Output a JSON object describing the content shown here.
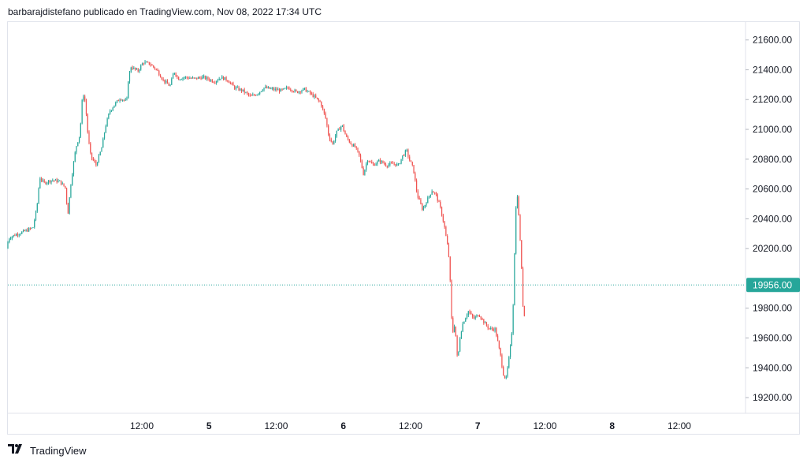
{
  "header": {
    "attribution": "barbarajdistefano publicado en TradingView.com, Nov 08, 2022 17:34 UTC"
  },
  "footer": {
    "brand": "TradingView",
    "logo_icon": "tradingview-logo-icon"
  },
  "colors": {
    "up": "#26a69a",
    "down": "#ef5350",
    "price_line": "#26a69a",
    "grid": "#e0e3eb",
    "text": "#131722"
  },
  "chart_data": {
    "type": "candlestick",
    "y_ticks": [
      "21600.00",
      "21400.00",
      "21200.00",
      "21000.00",
      "20800.00",
      "20600.00",
      "20400.00",
      "20200.00",
      "19800.00",
      "19600.00",
      "19400.00",
      "19200.00"
    ],
    "y_range": [
      19100,
      21720
    ],
    "x_ticks": [
      {
        "label": "12:00",
        "t": 0.5,
        "bold": false
      },
      {
        "label": "5",
        "t": 1.0,
        "bold": true
      },
      {
        "label": "12:00",
        "t": 1.5,
        "bold": false
      },
      {
        "label": "6",
        "t": 2.0,
        "bold": true
      },
      {
        "label": "12:00",
        "t": 2.5,
        "bold": false
      },
      {
        "label": "7",
        "t": 3.0,
        "bold": true
      },
      {
        "label": "12:00",
        "t": 3.5,
        "bold": false
      },
      {
        "label": "8",
        "t": 4.0,
        "bold": true
      },
      {
        "label": "12:00",
        "t": 4.5,
        "bold": false
      }
    ],
    "x_range": [
      -0.497,
      4.987
    ],
    "last_price": 19956.0,
    "last_price_label": "19956.00",
    "price_path": [
      [
        -0.497,
        20200
      ],
      [
        -0.48,
        20270
      ],
      [
        -0.44,
        20290
      ],
      [
        -0.38,
        20310
      ],
      [
        -0.3,
        20340
      ],
      [
        -0.27,
        20480
      ],
      [
        -0.25,
        20680
      ],
      [
        -0.22,
        20640
      ],
      [
        -0.16,
        20660
      ],
      [
        -0.1,
        20650
      ],
      [
        -0.06,
        20610
      ],
      [
        -0.04,
        20430
      ],
      [
        -0.02,
        20620
      ],
      [
        0.0,
        20760
      ],
      [
        0.02,
        20880
      ],
      [
        0.05,
        20970
      ],
      [
        0.07,
        21250
      ],
      [
        0.09,
        21180
      ],
      [
        0.11,
        20950
      ],
      [
        0.13,
        20820
      ],
      [
        0.17,
        20760
      ],
      [
        0.21,
        20870
      ],
      [
        0.24,
        21020
      ],
      [
        0.27,
        21120
      ],
      [
        0.31,
        21170
      ],
      [
        0.35,
        21210
      ],
      [
        0.39,
        21190
      ],
      [
        0.4,
        21200
      ],
      [
        0.41,
        21340
      ],
      [
        0.43,
        21420
      ],
      [
        0.48,
        21390
      ],
      [
        0.52,
        21450
      ],
      [
        0.57,
        21440
      ],
      [
        0.62,
        21400
      ],
      [
        0.67,
        21330
      ],
      [
        0.72,
        21290
      ],
      [
        0.75,
        21390
      ],
      [
        0.78,
        21340
      ],
      [
        0.83,
        21350
      ],
      [
        0.9,
        21340
      ],
      [
        0.96,
        21350
      ],
      [
        1.0,
        21340
      ],
      [
        1.05,
        21320
      ],
      [
        1.1,
        21350
      ],
      [
        1.15,
        21330
      ],
      [
        1.2,
        21280
      ],
      [
        1.26,
        21260
      ],
      [
        1.32,
        21220
      ],
      [
        1.37,
        21240
      ],
      [
        1.42,
        21280
      ],
      [
        1.48,
        21270
      ],
      [
        1.55,
        21260
      ],
      [
        1.6,
        21280
      ],
      [
        1.66,
        21250
      ],
      [
        1.72,
        21270
      ],
      [
        1.78,
        21230
      ],
      [
        1.84,
        21180
      ],
      [
        1.88,
        21070
      ],
      [
        1.9,
        20960
      ],
      [
        1.93,
        20900
      ],
      [
        1.96,
        20980
      ],
      [
        2.0,
        21030
      ],
      [
        2.03,
        20950
      ],
      [
        2.07,
        20900
      ],
      [
        2.1,
        20880
      ],
      [
        2.13,
        20820
      ],
      [
        2.16,
        20700
      ],
      [
        2.19,
        20800
      ],
      [
        2.23,
        20760
      ],
      [
        2.28,
        20790
      ],
      [
        2.33,
        20760
      ],
      [
        2.38,
        20770
      ],
      [
        2.42,
        20760
      ],
      [
        2.45,
        20820
      ],
      [
        2.48,
        20860
      ],
      [
        2.5,
        20800
      ],
      [
        2.53,
        20740
      ],
      [
        2.56,
        20560
      ],
      [
        2.6,
        20460
      ],
      [
        2.63,
        20520
      ],
      [
        2.67,
        20590
      ],
      [
        2.7,
        20560
      ],
      [
        2.73,
        20480
      ],
      [
        2.76,
        20360
      ],
      [
        2.79,
        20190
      ],
      [
        2.8,
        20100
      ],
      [
        2.82,
        19620
      ],
      [
        2.84,
        19700
      ],
      [
        2.86,
        19440
      ],
      [
        2.88,
        19620
      ],
      [
        2.9,
        19700
      ],
      [
        2.94,
        19780
      ],
      [
        2.98,
        19730
      ],
      [
        3.02,
        19760
      ],
      [
        3.06,
        19700
      ],
      [
        3.1,
        19660
      ],
      [
        3.14,
        19660
      ],
      [
        3.18,
        19480
      ],
      [
        3.2,
        19360
      ],
      [
        3.22,
        19320
      ],
      [
        3.25,
        19510
      ],
      [
        3.27,
        19700
      ],
      [
        3.285,
        20200
      ],
      [
        3.3,
        20620
      ],
      [
        3.31,
        20500
      ],
      [
        3.33,
        20200
      ],
      [
        3.35,
        19750
      ]
    ]
  }
}
